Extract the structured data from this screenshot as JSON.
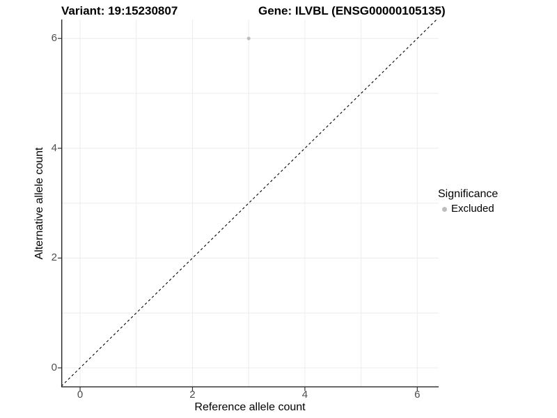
{
  "title": {
    "variant": "Variant: 19:15230807",
    "gene": "Gene: ILVBL (ENSG00000105135)"
  },
  "legend": {
    "title": "Significance",
    "entries": [
      {
        "label": "Excluded",
        "color": "#bdbdbd"
      }
    ]
  },
  "chart_data": {
    "type": "scatter",
    "title_left": "Variant: 19:15230807",
    "title_right": "Gene: ILVBL (ENSG00000105135)",
    "xlabel": "Reference allele count",
    "ylabel": "Alternative allele count",
    "xlim": [
      -0.335,
      6.38
    ],
    "ylim": [
      -0.355,
      6.345
    ],
    "x_ticks": [
      0,
      2,
      4,
      6
    ],
    "y_ticks": [
      0,
      2,
      4,
      6
    ],
    "grid": true,
    "grid_every": 1,
    "grid_color": "#ececec",
    "axis_line_color": "#262626",
    "tick_color": "#333333",
    "tick_label_color": "#4d4d4d",
    "reference_line": {
      "type": "identity",
      "slope": 1,
      "intercept": 0,
      "style": "dashed",
      "color": "#000000"
    },
    "series": [
      {
        "name": "Excluded",
        "color": "#bdbdbd",
        "points": [
          {
            "x": 3,
            "y": 6
          }
        ]
      }
    ],
    "legend_position": "right"
  }
}
